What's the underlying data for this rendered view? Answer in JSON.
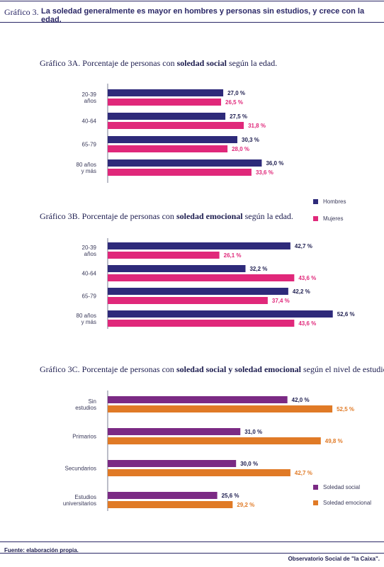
{
  "header": {
    "label": "Gráfico 3.",
    "title": "La soledad generalmente es mayor en hombres y personas sin estudios, y crece con la edad."
  },
  "footer": {
    "source": "Fuente: elaboración propia.",
    "publisher": "Observatorio Social de \"la Caixa\"."
  },
  "colors": {
    "hombres": "#2e2a7a",
    "mujeres": "#e0287a",
    "social": "#7b2a84",
    "emocional": "#e07a26",
    "ink": "#1d1d4f"
  },
  "chart_data": [
    {
      "type": "bar",
      "orientation": "horizontal",
      "title": {
        "prefix": "Gráfico 3A. Porcentaje de personas con ",
        "bold": "soledad social",
        "suffix": " según la edad."
      },
      "categories": [
        "20-39\naños",
        "40-64",
        "65-79",
        "80 años\ny más"
      ],
      "series": [
        {
          "name": "Hombres",
          "values": [
            27.0,
            27.5,
            30.3,
            36.0
          ],
          "labels": [
            "27,0 %",
            "27,5 %",
            "30,3 %",
            "36,0 %"
          ]
        },
        {
          "name": "Mujeres",
          "values": [
            26.5,
            31.8,
            28.0,
            33.6
          ],
          "labels": [
            "26,5 %",
            "31,8 %",
            "28,0 %",
            "33,6 %"
          ]
        }
      ],
      "xlim": [
        0,
        60
      ],
      "grid": false,
      "legend": "right"
    },
    {
      "type": "bar",
      "orientation": "horizontal",
      "title": {
        "prefix": "Gráfico 3B. Porcentaje de personas con ",
        "bold": "soledad emocional",
        "suffix": " según la edad."
      },
      "categories": [
        "20-39\naños",
        "40-64",
        "65-79",
        "80 años\ny más"
      ],
      "series": [
        {
          "name": "Hombres",
          "values": [
            42.7,
            32.2,
            42.2,
            52.6
          ],
          "labels": [
            "42,7 %",
            "32,2 %",
            "42,2 %",
            "52,6 %"
          ]
        },
        {
          "name": "Mujeres",
          "values": [
            26.1,
            43.6,
            37.4,
            43.6
          ],
          "labels": [
            "26,1 %",
            "43,6 %",
            "37,4 %",
            "43,6 %"
          ]
        }
      ],
      "xlim": [
        0,
        60
      ],
      "grid": false
    },
    {
      "type": "bar",
      "orientation": "horizontal",
      "title": {
        "prefix": "Gráfico 3C. Porcentaje de personas con ",
        "bold": "soledad social y soledad emocional",
        "suffix": " según el nivel de estudios."
      },
      "categories": [
        "Sin\nestudios",
        "Primarios",
        "Secundarios",
        "Estudios\nuniversitarios"
      ],
      "series": [
        {
          "name": "Soledad social",
          "values": [
            42.0,
            31.0,
            30.0,
            25.6
          ],
          "labels": [
            "42,0 %",
            "31,0 %",
            "30,0 %",
            "25,6 %"
          ]
        },
        {
          "name": "Soledad emocional",
          "values": [
            52.5,
            49.8,
            42.7,
            29.2
          ],
          "labels": [
            "52,5 %",
            "49,8 %",
            "42,7 %",
            "29,2 %"
          ]
        }
      ],
      "xlim": [
        0,
        60
      ],
      "grid": false,
      "legend": "bottom-right"
    }
  ]
}
